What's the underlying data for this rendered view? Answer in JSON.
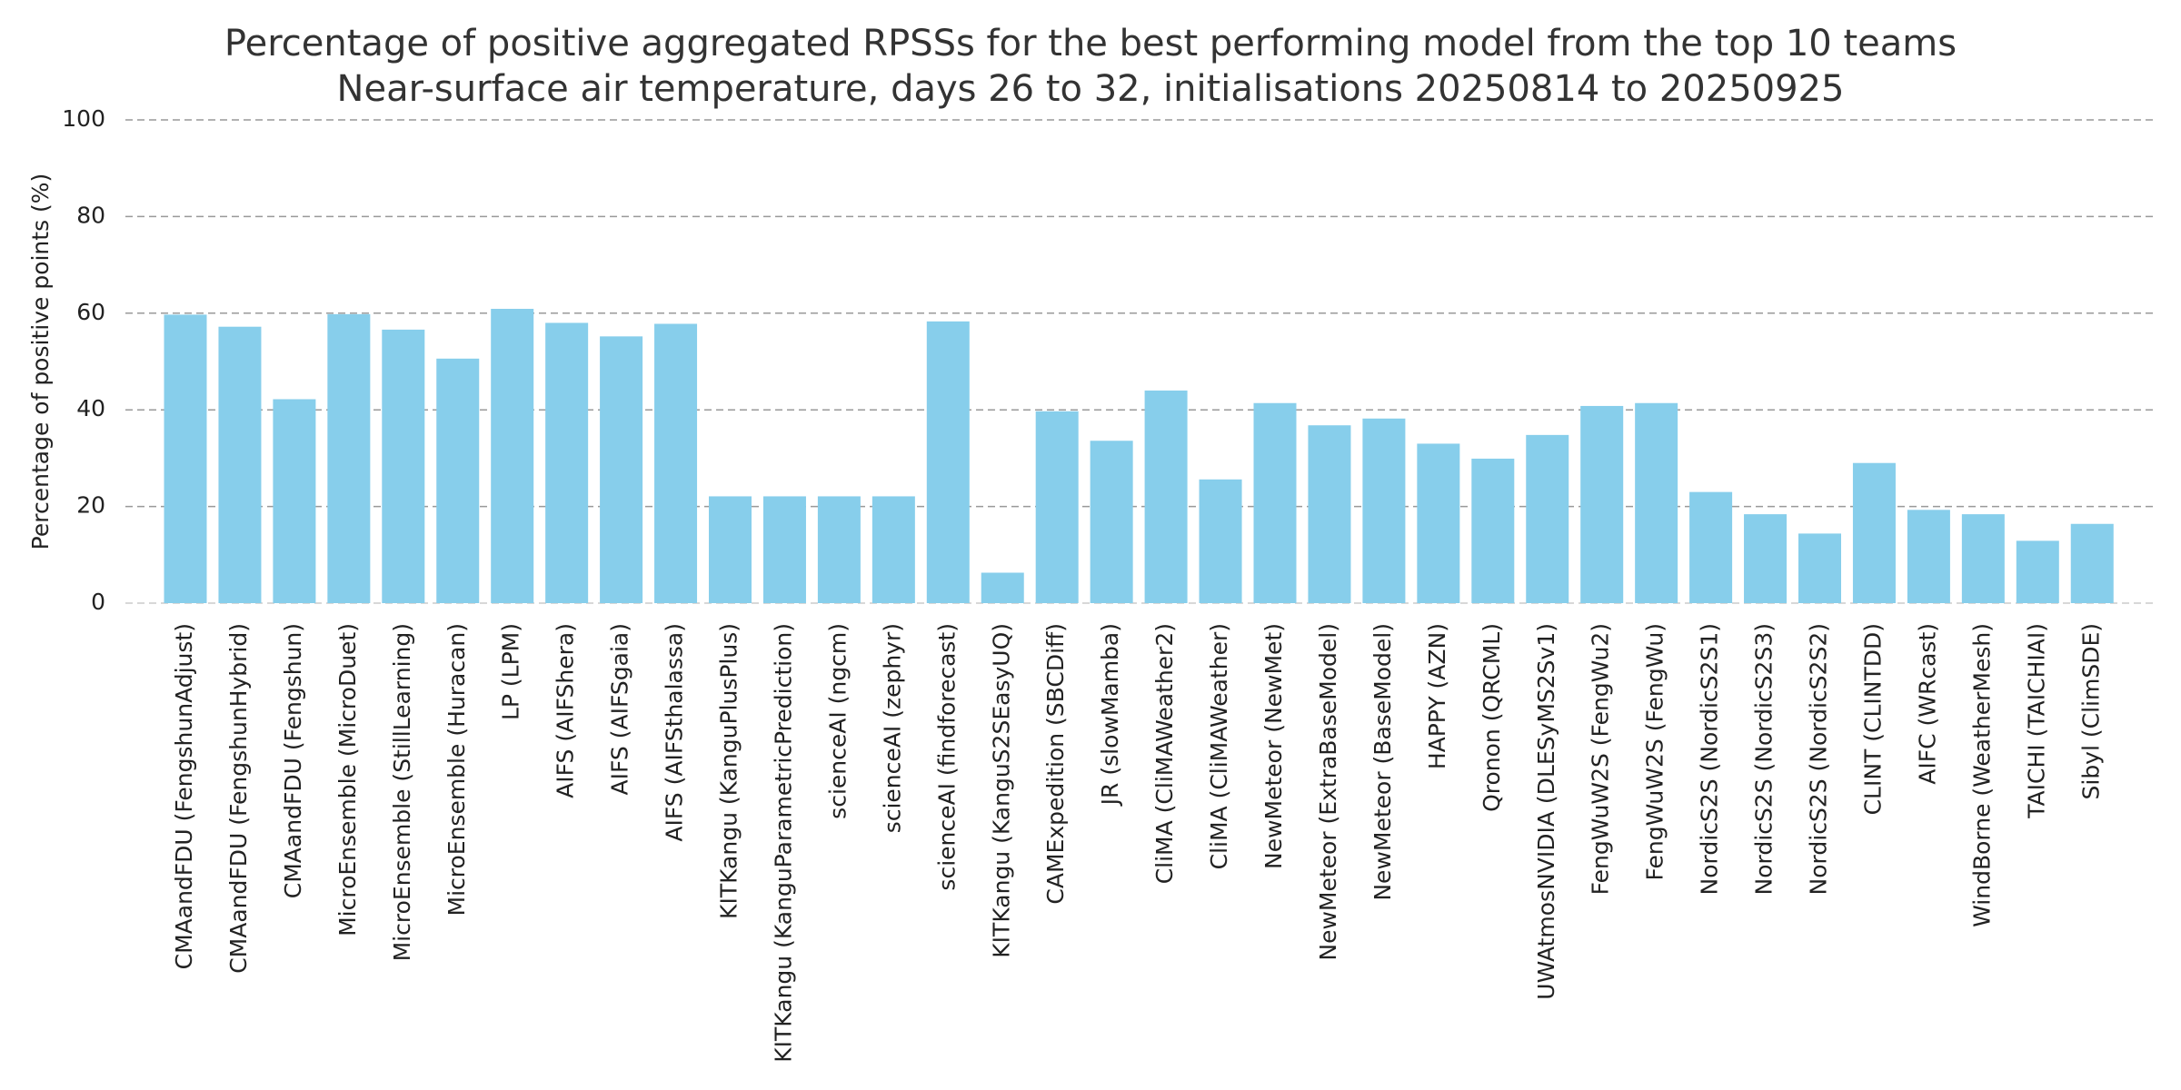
{
  "chart_data": {
    "type": "bar",
    "title": "Percentage of positive aggregated RPSSs for the best performing model from the top 10 teams",
    "subtitle": "Near-surface air temperature, days 26 to 32, initialisations 20250814 to 20250925",
    "y_label": "Percentage of positive points (%)",
    "categories": [
      "CMAandFDU (FengshunAdjust)",
      "CMAandFDU (FengshunHybrid)",
      "CMAandFDU (Fengshun)",
      "MicroEnsemble (MicroDuet)",
      "MicroEnsemble (StillLearning)",
      "MicroEnsemble (Huracan)",
      "LP (LPM)",
      "AIFS (AIFShera)",
      "AIFS (AIFSgaia)",
      "AIFS (AIFSthalassa)",
      "KITKangu (KanguPlusPlus)",
      "KITKangu (KanguParametricPrediction)",
      "scienceAI (ngcm)",
      "scienceAI (zephyr)",
      "scienceAI (findforecast)",
      "KITKangu (KanguS2SEasyUQ)",
      "CAMExpedition (SBCDiff)",
      "JR (slowMamba)",
      "CliMA (CliMAWeather2)",
      "CliMA (CliMAWeather)",
      "NewMeteor (NewMet)",
      "NewMeteor (ExtraBaseModel)",
      "NewMeteor (BaseModel)",
      "HAPPY (AZN)",
      "Qronon (QRCML)",
      "UWAtmosNVIDIA (DLESyMS2Sv1)",
      "FengWuW2S (FengWu2)",
      "FengWuW2S (FengWu)",
      "NordicS2S (NordicS2S1)",
      "NordicS2S (NordicS2S3)",
      "NordicS2S (NordicS2S2)",
      "CLINT (CLINTDD)",
      "AIFC (WRcast)",
      "WindBorne (WeatherMesh)",
      "TAICHI (TAICHIAI)",
      "Sibyl (ClimSDE)"
    ],
    "values": [
      59.7,
      57.2,
      42.2,
      59.8,
      56.6,
      50.6,
      60.9,
      58.0,
      55.2,
      57.8,
      22.1,
      22.1,
      22.1,
      22.1,
      58.3,
      6.3,
      39.7,
      33.6,
      44.0,
      25.6,
      41.4,
      36.8,
      38.2,
      33.0,
      29.9,
      34.8,
      40.8,
      41.4,
      23.0,
      18.4,
      14.4,
      29.0,
      19.3,
      18.4,
      12.9,
      16.4
    ],
    "color": "#87ceeb",
    "ylim": [
      0,
      100
    ],
    "yticks": [
      0,
      20,
      40,
      60,
      80,
      100
    ],
    "grid": true
  }
}
